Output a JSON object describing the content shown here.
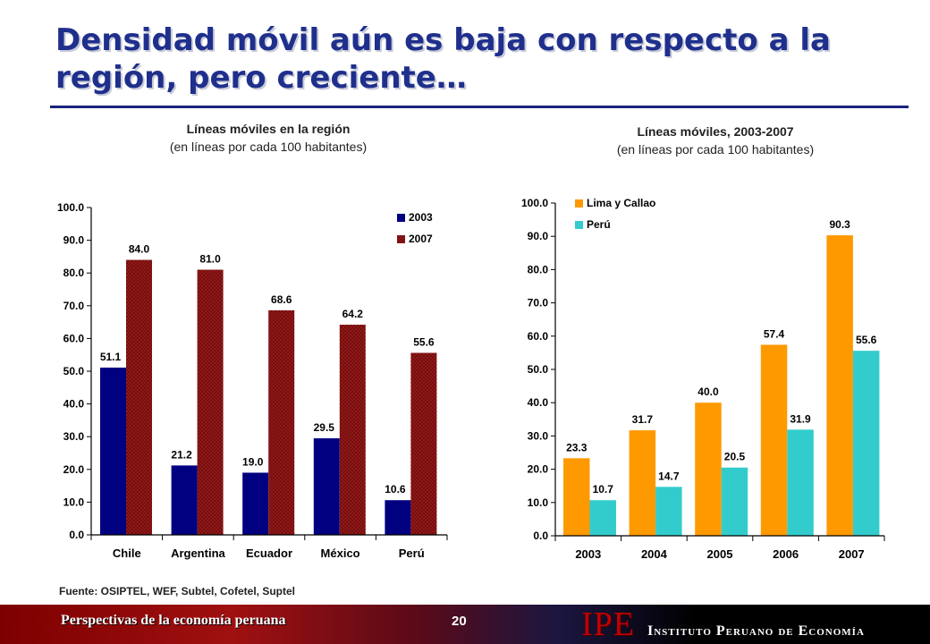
{
  "slide": {
    "title": "Densidad móvil aún es baja con respecto a la región, pero creciente…",
    "source": "Fuente: OSIPTEL, WEF, Subtel, Cofetel, Suptel",
    "footer_left": "Perspectivas de la economía peruana",
    "page_number": "20",
    "brand_logo": "IPE",
    "brand_name": "Instituto Peruano de Economía",
    "colors": {
      "title": "#1f2f8c",
      "rule": "#1a237e",
      "footer": "#7d0000"
    }
  },
  "chart_data": [
    {
      "type": "bar",
      "title": "Líneas móviles en la región",
      "subtitle": "(en líneas por cada 100 habitantes)",
      "categories": [
        "Chile",
        "Argentina",
        "Ecuador",
        "México",
        "Perú"
      ],
      "series": [
        {
          "name": "2003",
          "color": "#000080",
          "values": [
            51.1,
            21.2,
            19.0,
            29.5,
            10.6
          ]
        },
        {
          "name": "2007",
          "color": "#9b1b1b",
          "values": [
            84.0,
            81.0,
            68.6,
            64.2,
            55.6
          ]
        }
      ],
      "ylim": [
        0,
        100
      ],
      "yticks": [
        "0.0",
        "10.0",
        "20.0",
        "30.0",
        "40.0",
        "50.0",
        "60.0",
        "70.0",
        "80.0",
        "90.0",
        "100.0"
      ],
      "legend": "top-right",
      "grid": false
    },
    {
      "type": "bar",
      "title": "Líneas móviles, 2003-2007",
      "subtitle": "(en líneas por cada 100 habitantes)",
      "categories": [
        "2003",
        "2004",
        "2005",
        "2006",
        "2007"
      ],
      "series": [
        {
          "name": "Lima y Callao",
          "color": "#ff9900",
          "values": [
            23.3,
            31.7,
            40.0,
            57.4,
            90.3
          ]
        },
        {
          "name": "Perú",
          "color": "#33cccc",
          "values": [
            10.7,
            14.7,
            20.5,
            31.9,
            55.6
          ]
        }
      ],
      "ylim": [
        0,
        100
      ],
      "yticks": [
        "0.0",
        "10.0",
        "20.0",
        "30.0",
        "40.0",
        "50.0",
        "60.0",
        "70.0",
        "80.0",
        "90.0",
        "100.0"
      ],
      "legend": "top-left",
      "grid": false
    }
  ]
}
